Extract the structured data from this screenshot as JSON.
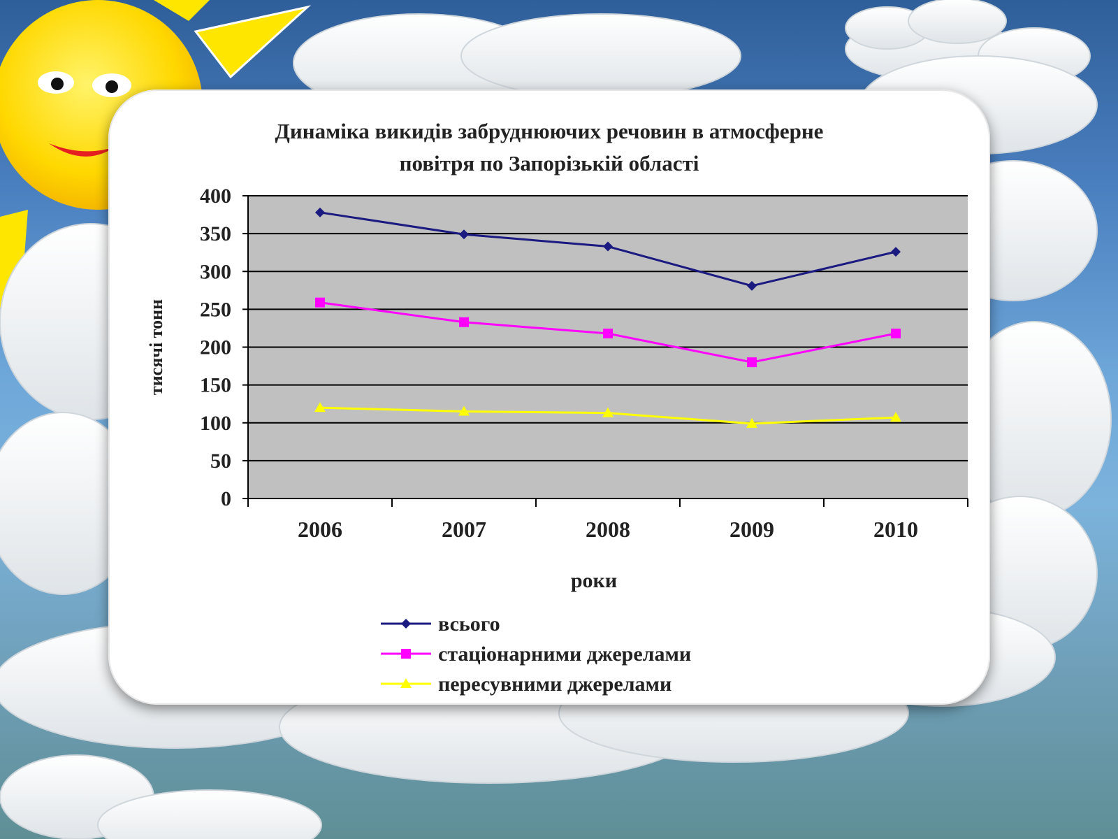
{
  "chart_data": {
    "type": "line",
    "title_lines": [
      "Динаміка викидів забруднюючих речовин в атмосферне",
      "повітря по Запорізькій області"
    ],
    "xlabel": "роки",
    "ylabel": "тисячі тонн",
    "categories": [
      "2006",
      "2007",
      "2008",
      "2009",
      "2010"
    ],
    "ylim": [
      0,
      400
    ],
    "yticks": [
      0,
      50,
      100,
      150,
      200,
      250,
      300,
      350,
      400
    ],
    "grid": true,
    "legend_position": "bottom",
    "series": [
      {
        "name": "всього",
        "values": [
          378,
          349,
          333,
          281,
          326
        ],
        "color": "#1a1a80",
        "marker": "diamond"
      },
      {
        "name": "стаціонарними джерелами",
        "values": [
          259,
          233,
          218,
          180,
          218
        ],
        "color": "#ff00ff",
        "marker": "square"
      },
      {
        "name": "пересувними джерелами",
        "values": [
          120,
          115,
          113,
          99,
          107
        ],
        "color": "#ffff00",
        "marker": "triangle"
      }
    ]
  },
  "colors": {
    "plot_background": "#c0c0c0",
    "gridline": "#000000",
    "sun": "#ffe600",
    "cloud": "#f4f6f8"
  }
}
